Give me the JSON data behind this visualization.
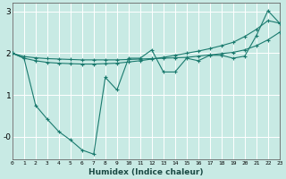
{
  "xlabel": "Humidex (Indice chaleur)",
  "ylabel": "",
  "background_color": "#c8eae4",
  "grid_color": "#ffffff",
  "line_color": "#1a7a6e",
  "xlim": [
    0,
    23
  ],
  "ylim": [
    -0.55,
    3.2
  ],
  "x_ticks": [
    0,
    1,
    2,
    3,
    4,
    5,
    6,
    7,
    8,
    9,
    10,
    11,
    12,
    13,
    14,
    15,
    16,
    17,
    18,
    19,
    20,
    21,
    22,
    23
  ],
  "y_ticks": [
    0,
    1,
    2,
    3
  ],
  "y_tick_labels": [
    "-0",
    "1",
    "2",
    "3"
  ],
  "line1_x": [
    0,
    1,
    2,
    3,
    4,
    5,
    6,
    7,
    8,
    9,
    10,
    11,
    12,
    13,
    14,
    15,
    16,
    17,
    18,
    19,
    20,
    21,
    22,
    23
  ],
  "line1_y": [
    2.0,
    1.92,
    1.89,
    1.87,
    1.86,
    1.85,
    1.84,
    1.84,
    1.84,
    1.84,
    1.85,
    1.86,
    1.87,
    1.88,
    1.89,
    1.9,
    1.93,
    1.96,
    1.99,
    2.02,
    2.08,
    2.18,
    2.32,
    2.5
  ],
  "line2_x": [
    0,
    1,
    2,
    3,
    4,
    5,
    6,
    7,
    8,
    9,
    10,
    11,
    12,
    13,
    14,
    15,
    16,
    17,
    18,
    19,
    20,
    21,
    22,
    23
  ],
  "line2_y": [
    2.0,
    1.88,
    1.82,
    1.78,
    1.76,
    1.75,
    1.74,
    1.74,
    1.75,
    1.76,
    1.79,
    1.82,
    1.86,
    1.9,
    1.95,
    2.0,
    2.05,
    2.11,
    2.18,
    2.26,
    2.4,
    2.57,
    2.78,
    2.72
  ],
  "line3_x": [
    0,
    1,
    2,
    3,
    4,
    5,
    6,
    7,
    8,
    9,
    10,
    11,
    12,
    13,
    14,
    15,
    16,
    17,
    18,
    19,
    20,
    21,
    22,
    23
  ],
  "line3_y": [
    2.0,
    1.88,
    0.75,
    0.42,
    0.12,
    -0.08,
    -0.32,
    -0.42,
    1.42,
    1.12,
    1.88,
    1.88,
    2.08,
    1.55,
    1.55,
    1.88,
    1.82,
    1.95,
    1.95,
    1.88,
    1.93,
    2.42,
    3.02,
    2.72
  ]
}
